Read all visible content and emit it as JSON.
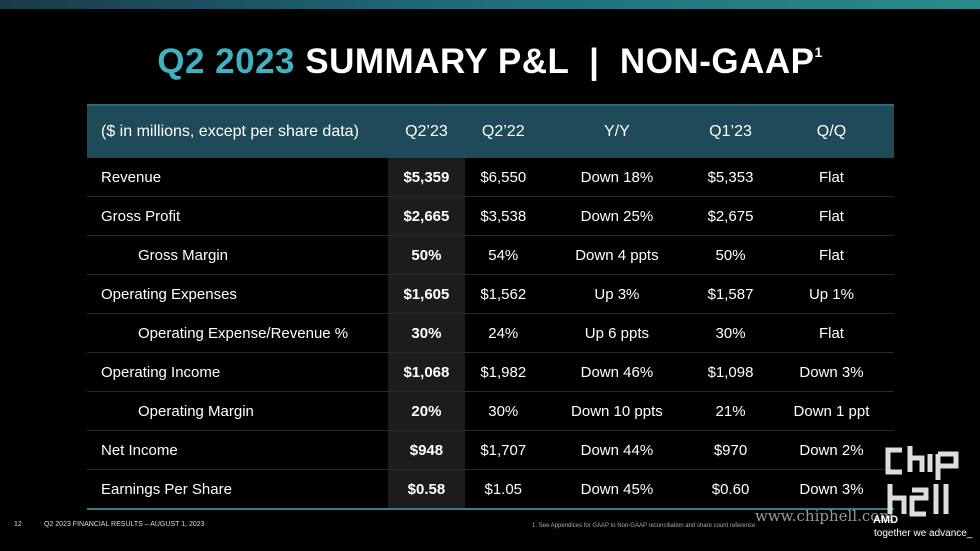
{
  "title": {
    "accent": "Q2 2023",
    "main": "SUMMARY P&L  |  NON-GAAP",
    "sup": "1"
  },
  "table": {
    "headers": [
      "($ in millions, except per share data)",
      "Q2’23",
      "Q2’22",
      "Y/Y",
      "Q1’23",
      "Q/Q"
    ],
    "rows": [
      [
        "Revenue",
        "$5,359",
        "$6,550",
        "Down 18%",
        "$5,353",
        "Flat"
      ],
      [
        "Gross Profit",
        "$2,665",
        "$3,538",
        "Down 25%",
        "$2,675",
        "Flat"
      ],
      [
        "Gross Margin",
        "50%",
        "54%",
        "Down 4 ppts",
        "50%",
        "Flat"
      ],
      [
        "Operating Expenses",
        "$1,605",
        "$1,562",
        "Up 3%",
        "$1,587",
        "Up 1%"
      ],
      [
        "Operating Expense/Revenue %",
        "30%",
        "24%",
        "Up 6 ppts",
        "30%",
        "Flat"
      ],
      [
        "Operating Income",
        "$1,068",
        "$1,982",
        "Down 46%",
        "$1,098",
        "Down 3%"
      ],
      [
        "Operating Margin",
        "20%",
        "30%",
        "Down 10 ppts",
        "21%",
        "Down 1 ppt"
      ],
      [
        "Net Income",
        "$948",
        "$1,707",
        "Down 44%",
        "$970",
        "Down 2%"
      ],
      [
        "Earnings Per Share",
        "$0.58",
        "$1.05",
        "Down 45%",
        "$0.60",
        "Down 3%"
      ]
    ]
  },
  "footer": {
    "page": "12",
    "text": "Q2 2023 FINANCIAL RESULTS – AUGUST 1, 2023",
    "footnote": "1.  See Appendices for GAAP to Non-GAAP reconciliation and share count reference"
  },
  "watermark": "www.chiphell.com",
  "brand": {
    "name": "AMD",
    "tagline": "together we advance_"
  },
  "colors": {
    "accent": "#3fb1c0",
    "header_bg": "#1e4a5a",
    "highlight_col": "#1c1c1c"
  }
}
